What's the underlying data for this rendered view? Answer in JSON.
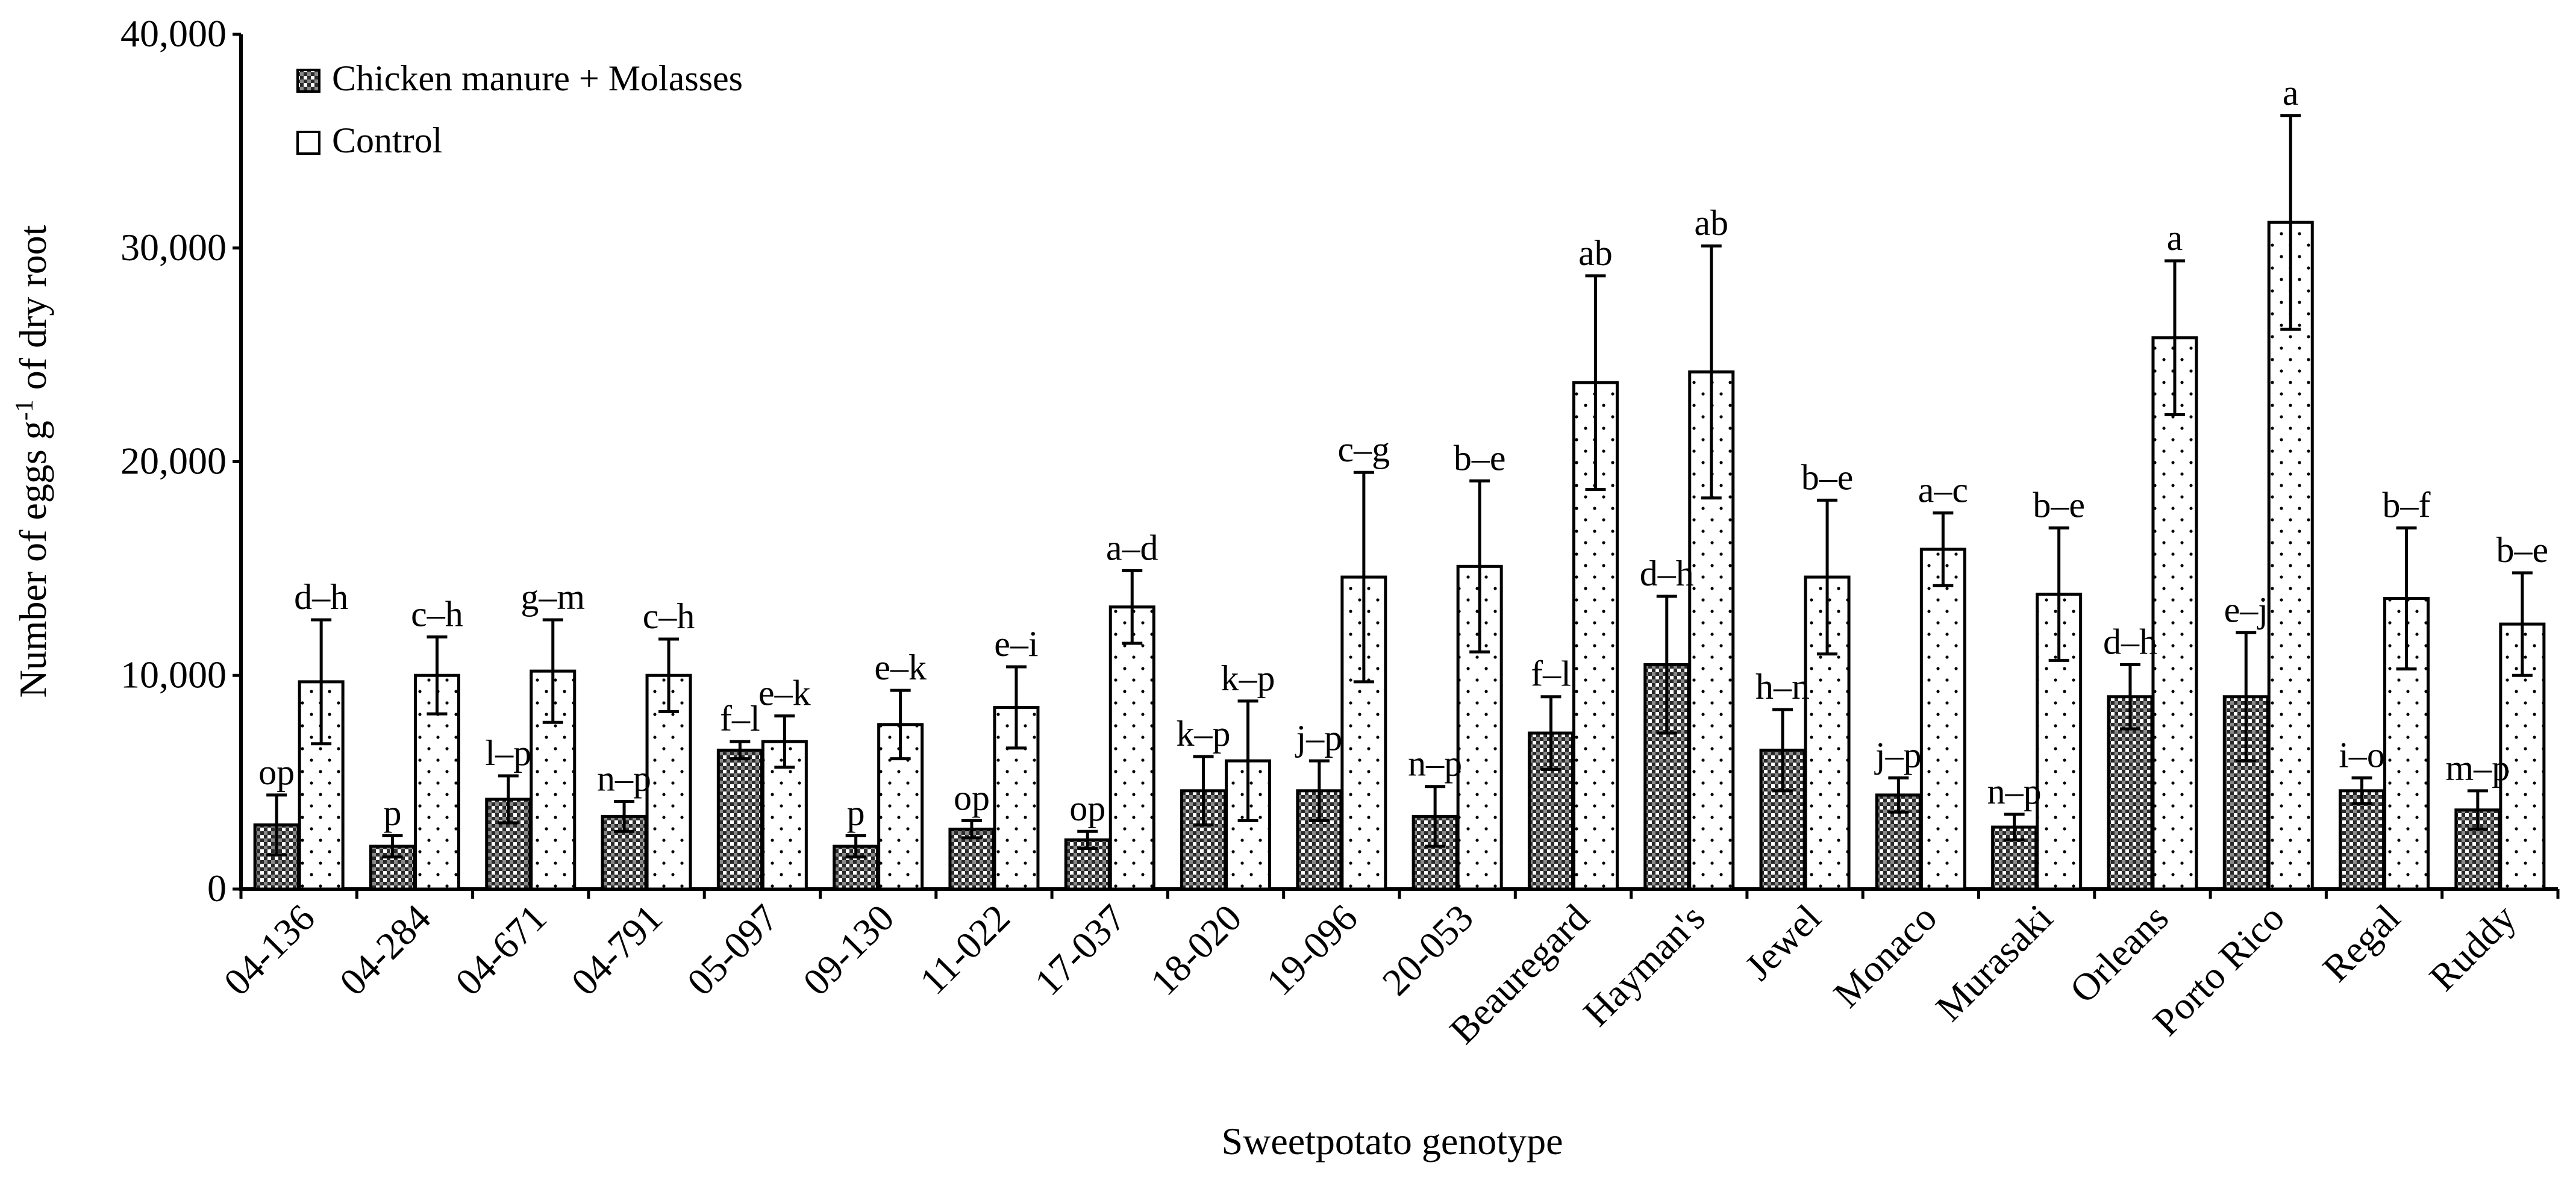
{
  "chart_data": {
    "type": "bar",
    "title": "",
    "xlabel": "Sweetpotato genotype",
    "ylabel_parts": [
      "Number of eggs g",
      "-1",
      " of dry root"
    ],
    "ylabel": "Number of eggs g-1 of dry root",
    "ylim": [
      0,
      40000
    ],
    "yticks": [
      0,
      10000,
      20000,
      30000,
      40000
    ],
    "ytick_labels": [
      "0",
      "10,000",
      "20,000",
      "30,000",
      "40,000"
    ],
    "grid": false,
    "legend_position": "top-left",
    "categories": [
      "04-136",
      "04-284",
      "04-671",
      "04-791",
      "05-097",
      "09-130",
      "11-022",
      "17-037",
      "18-020",
      "19-096",
      "20-053",
      "Beauregard",
      "Hayman's",
      "Jewel",
      "Monaco",
      "Murasaki",
      "Orleans",
      "Porto Rico",
      "Regal",
      "Ruddy"
    ],
    "series": [
      {
        "name": "Chicken manure + Molasses",
        "pattern": "checkered",
        "values": [
          3000,
          2000,
          4200,
          3400,
          6500,
          2000,
          2800,
          2300,
          4600,
          4600,
          3400,
          7300,
          10500,
          6500,
          4400,
          2900,
          9000,
          9000,
          4600,
          3700
        ],
        "error": [
          1400,
          500,
          1100,
          700,
          400,
          500,
          400,
          400,
          1600,
          1400,
          1400,
          1700,
          3200,
          1900,
          800,
          600,
          1500,
          3000,
          600,
          900
        ],
        "letters": [
          "op",
          "p",
          "l–p",
          "n–p",
          "f–l",
          "p",
          "op",
          "op",
          "k–p",
          "j–p",
          "n–p",
          "f–l",
          "d–h",
          "h–n",
          "j–p",
          "n–p",
          "d–h",
          "e–j",
          "i–o",
          "m–p"
        ]
      },
      {
        "name": "Control",
        "pattern": "dotted",
        "values": [
          9700,
          10000,
          10200,
          10000,
          6900,
          7700,
          8500,
          13200,
          6000,
          14600,
          15100,
          23700,
          24200,
          14600,
          15900,
          13800,
          25800,
          31200,
          13600,
          12400
        ],
        "error": [
          2900,
          1800,
          2400,
          1700,
          1200,
          1600,
          1900,
          1700,
          2800,
          4900,
          4000,
          5000,
          5900,
          3600,
          1700,
          3100,
          3600,
          5000,
          3300,
          2400
        ],
        "letters": [
          "d–h",
          "c–h",
          "g–m",
          "c–h",
          "e–k",
          "e–k",
          "e–i",
          "a–d",
          "k–p",
          "c–g",
          "b–e",
          "ab",
          "ab",
          "b–e",
          "a–c",
          "b–e",
          "a",
          "a",
          "b–f",
          "b–e"
        ]
      }
    ]
  }
}
